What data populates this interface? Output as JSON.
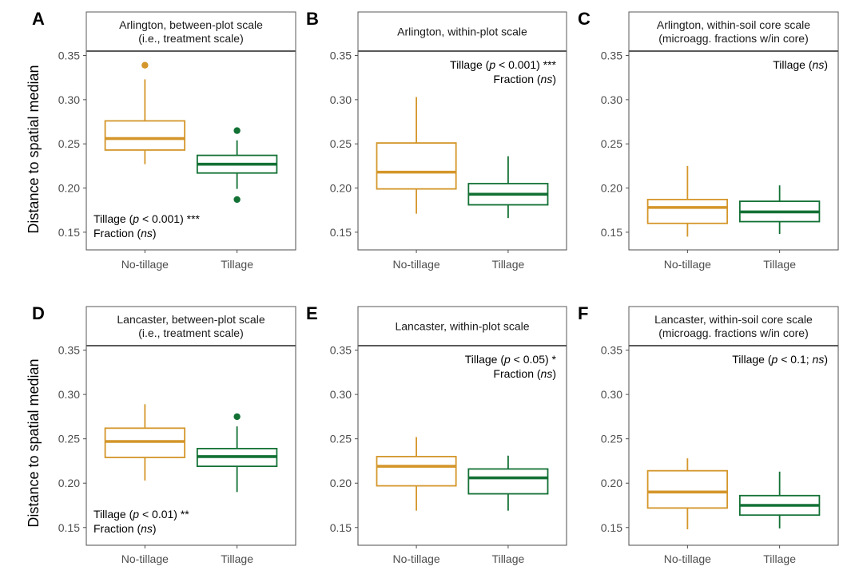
{
  "colors": {
    "no_tillage": "#D4962A",
    "tillage": "#137135",
    "axis": "#4d4d4d",
    "strip_line": "#5a5a5a"
  },
  "ylabel": "Distance to spatial median",
  "chart_data": [
    {
      "type": "box",
      "letter": "A",
      "title_lines": [
        "Arlington, between-plot scale",
        "(i.e., treatment scale)"
      ],
      "categories": [
        "No-tillage",
        "Tillage"
      ],
      "ylim": [
        0.13,
        0.355
      ],
      "yticks": [
        0.15,
        0.2,
        0.25,
        0.3,
        0.35
      ],
      "ytick_labels": [
        "0.15",
        "0.20",
        "0.25",
        "0.30",
        "0.35"
      ],
      "boxes": [
        {
          "category": "No-tillage",
          "whisker_low": 0.227,
          "q1": 0.243,
          "median": 0.256,
          "q3": 0.276,
          "whisker_high": 0.323,
          "outliers": [
            0.339
          ]
        },
        {
          "category": "Tillage",
          "whisker_low": 0.199,
          "q1": 0.217,
          "median": 0.227,
          "q3": 0.237,
          "whisker_high": 0.254,
          "outliers": [
            0.265,
            0.187
          ]
        }
      ],
      "annotation_pos": "bottom-left",
      "annotation": [
        [
          {
            "t": "Tillage ("
          },
          {
            "t": "p",
            "i": true
          },
          {
            "t": " < 0.001) ***"
          }
        ],
        [
          {
            "t": "Fraction ("
          },
          {
            "t": "ns",
            "i": true
          },
          {
            "t": ")"
          }
        ]
      ]
    },
    {
      "type": "box",
      "letter": "B",
      "title_lines": [
        "Arlington, within-plot scale"
      ],
      "categories": [
        "No-tillage",
        "Tillage"
      ],
      "ylim": [
        0.13,
        0.355
      ],
      "yticks": [
        0.15,
        0.2,
        0.25,
        0.3,
        0.35
      ],
      "ytick_labels": [
        "0.15",
        "0.20",
        "0.25",
        "0.30",
        "0.35"
      ],
      "boxes": [
        {
          "category": "No-tillage",
          "whisker_low": 0.171,
          "q1": 0.199,
          "median": 0.218,
          "q3": 0.251,
          "whisker_high": 0.303,
          "outliers": []
        },
        {
          "category": "Tillage",
          "whisker_low": 0.166,
          "q1": 0.181,
          "median": 0.193,
          "q3": 0.205,
          "whisker_high": 0.236,
          "outliers": []
        }
      ],
      "annotation_pos": "top-right",
      "annotation": [
        [
          {
            "t": "Tillage ("
          },
          {
            "t": "p",
            "i": true
          },
          {
            "t": " < 0.001) ***"
          }
        ],
        [
          {
            "t": "Fraction ("
          },
          {
            "t": "ns",
            "i": true
          },
          {
            "t": ")"
          }
        ]
      ]
    },
    {
      "type": "box",
      "letter": "C",
      "title_lines": [
        "Arlington, within-soil core scale",
        "(microagg. fractions w/in core)"
      ],
      "categories": [
        "No-tillage",
        "Tillage"
      ],
      "ylim": [
        0.13,
        0.355
      ],
      "yticks": [
        0.15,
        0.2,
        0.25,
        0.3,
        0.35
      ],
      "ytick_labels": [
        "0.15",
        "0.20",
        "0.25",
        "0.30",
        "0.35"
      ],
      "boxes": [
        {
          "category": "No-tillage",
          "whisker_low": 0.145,
          "q1": 0.16,
          "median": 0.178,
          "q3": 0.187,
          "whisker_high": 0.225,
          "outliers": []
        },
        {
          "category": "Tillage",
          "whisker_low": 0.148,
          "q1": 0.162,
          "median": 0.173,
          "q3": 0.185,
          "whisker_high": 0.203,
          "outliers": []
        }
      ],
      "annotation_pos": "top-right",
      "annotation": [
        [
          {
            "t": "Tillage ("
          },
          {
            "t": "ns",
            "i": true
          },
          {
            "t": ")"
          }
        ]
      ]
    },
    {
      "type": "box",
      "letter": "D",
      "title_lines": [
        "Lancaster, between-plot scale",
        "(i.e., treatment scale)"
      ],
      "categories": [
        "No-tillage",
        "Tillage"
      ],
      "ylim": [
        0.13,
        0.355
      ],
      "yticks": [
        0.15,
        0.2,
        0.25,
        0.3,
        0.35
      ],
      "ytick_labels": [
        "0.15",
        "0.20",
        "0.25",
        "0.30",
        "0.35"
      ],
      "boxes": [
        {
          "category": "No-tillage",
          "whisker_low": 0.203,
          "q1": 0.229,
          "median": 0.247,
          "q3": 0.262,
          "whisker_high": 0.289,
          "outliers": []
        },
        {
          "category": "Tillage",
          "whisker_low": 0.19,
          "q1": 0.219,
          "median": 0.23,
          "q3": 0.239,
          "whisker_high": 0.264,
          "outliers": [
            0.275
          ]
        }
      ],
      "annotation_pos": "bottom-left",
      "annotation": [
        [
          {
            "t": "Tillage ("
          },
          {
            "t": "p",
            "i": true
          },
          {
            "t": " < 0.01) **"
          }
        ],
        [
          {
            "t": "Fraction ("
          },
          {
            "t": "ns",
            "i": true
          },
          {
            "t": ")"
          }
        ]
      ]
    },
    {
      "type": "box",
      "letter": "E",
      "title_lines": [
        "Lancaster, within-plot scale"
      ],
      "categories": [
        "No-tillage",
        "Tillage"
      ],
      "ylim": [
        0.13,
        0.355
      ],
      "yticks": [
        0.15,
        0.2,
        0.25,
        0.3,
        0.35
      ],
      "ytick_labels": [
        "0.15",
        "0.20",
        "0.25",
        "0.30",
        "0.35"
      ],
      "boxes": [
        {
          "category": "No-tillage",
          "whisker_low": 0.169,
          "q1": 0.197,
          "median": 0.219,
          "q3": 0.23,
          "whisker_high": 0.252,
          "outliers": []
        },
        {
          "category": "Tillage",
          "whisker_low": 0.169,
          "q1": 0.188,
          "median": 0.206,
          "q3": 0.216,
          "whisker_high": 0.231,
          "outliers": []
        }
      ],
      "annotation_pos": "top-right",
      "annotation": [
        [
          {
            "t": "Tillage ("
          },
          {
            "t": "p",
            "i": true
          },
          {
            "t": " < 0.05) *"
          }
        ],
        [
          {
            "t": "Fraction ("
          },
          {
            "t": "ns",
            "i": true
          },
          {
            "t": ")"
          }
        ]
      ]
    },
    {
      "type": "box",
      "letter": "F",
      "title_lines": [
        "Lancaster, within-soil core scale",
        "(microagg. fractions w/in core)"
      ],
      "categories": [
        "No-tillage",
        "Tillage"
      ],
      "ylim": [
        0.13,
        0.355
      ],
      "yticks": [
        0.15,
        0.2,
        0.25,
        0.3,
        0.35
      ],
      "ytick_labels": [
        "0.15",
        "0.20",
        "0.25",
        "0.30",
        "0.35"
      ],
      "boxes": [
        {
          "category": "No-tillage",
          "whisker_low": 0.148,
          "q1": 0.172,
          "median": 0.19,
          "q3": 0.214,
          "whisker_high": 0.228,
          "outliers": []
        },
        {
          "category": "Tillage",
          "whisker_low": 0.149,
          "q1": 0.164,
          "median": 0.175,
          "q3": 0.186,
          "whisker_high": 0.213,
          "outliers": []
        }
      ],
      "annotation_pos": "top-right",
      "annotation": [
        [
          {
            "t": "Tillage ("
          },
          {
            "t": "p",
            "i": true
          },
          {
            "t": " < 0.1; "
          },
          {
            "t": "ns",
            "i": true
          },
          {
            "t": ")"
          }
        ]
      ]
    }
  ]
}
